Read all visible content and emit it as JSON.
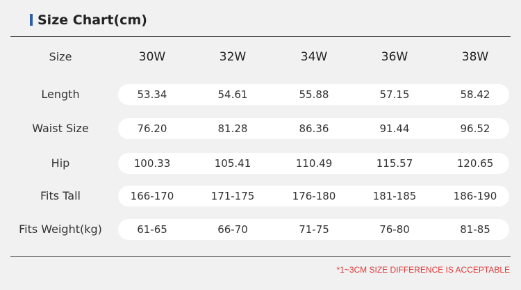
{
  "header": {
    "title": "Size Chart(cm)"
  },
  "table": {
    "columns": [
      "Size",
      "30W",
      "32W",
      "34W",
      "36W",
      "38W"
    ],
    "rows": [
      [
        "Length",
        "53.34",
        "54.61",
        "55.88",
        "57.15",
        "58.42"
      ],
      [
        "Waist Size",
        "76.20",
        "81.28",
        "86.36",
        "91.44",
        "96.52"
      ],
      [
        "Hip",
        "100.33",
        "105.41",
        "110.49",
        "115.57",
        "120.65"
      ],
      [
        "Fits Tall",
        "166-170",
        "171-175",
        "176-180",
        "181-185",
        "186-190"
      ],
      [
        "Fits Weight(kg)",
        "61-65",
        "66-70",
        "71-75",
        "76-80",
        "81-85"
      ]
    ]
  },
  "footnote": "*1~3CM SIZE DIFFERENCE IS ACCEPTABLE"
}
